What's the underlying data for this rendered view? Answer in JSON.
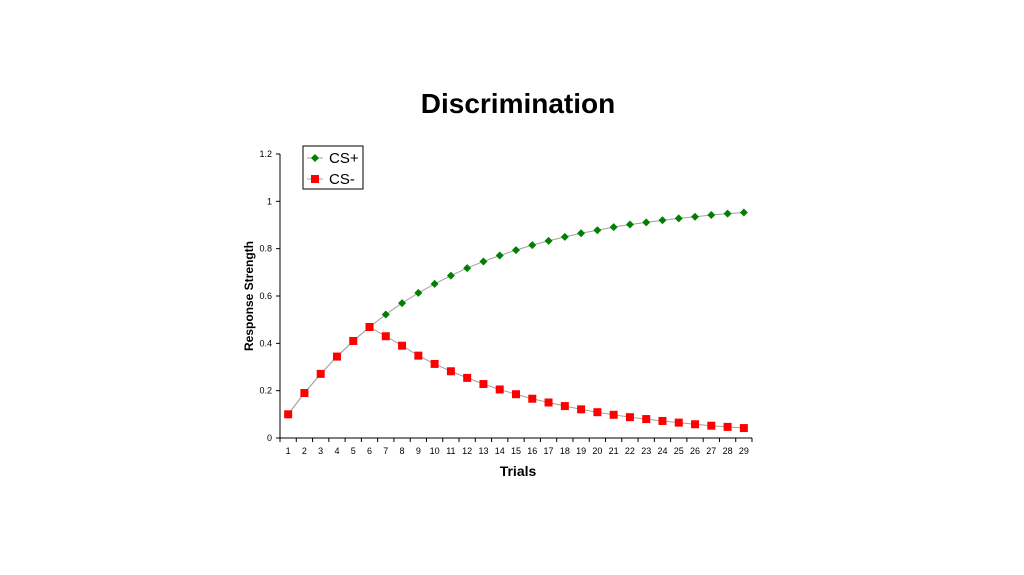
{
  "chart_data": {
    "type": "line",
    "title": "Discrimination",
    "xlabel": "Trials",
    "ylabel": "Response Strength",
    "categories": [
      "1",
      "2",
      "3",
      "4",
      "5",
      "6",
      "7",
      "8",
      "9",
      "10",
      "11",
      "12",
      "13",
      "14",
      "15",
      "16",
      "17",
      "18",
      "19",
      "20",
      "21",
      "22",
      "23",
      "24",
      "25",
      "26",
      "27",
      "28",
      "29"
    ],
    "yticks": [
      "0",
      "0.2",
      "0.4",
      "0.6",
      "0.8",
      "1",
      "1.2"
    ],
    "ylim": [
      0,
      1.2
    ],
    "grid": false,
    "legend_position": "top-left",
    "series": [
      {
        "name": "CS+",
        "color": "#008000",
        "marker": "diamond",
        "values": [
          0.1,
          0.19,
          0.271,
          0.344,
          0.41,
          0.469,
          0.522,
          0.57,
          0.613,
          0.651,
          0.686,
          0.718,
          0.746,
          0.771,
          0.794,
          0.815,
          0.833,
          0.85,
          0.865,
          0.878,
          0.891,
          0.902,
          0.911,
          0.92,
          0.928,
          0.935,
          0.942,
          0.948,
          0.953
        ]
      },
      {
        "name": "CS-",
        "color": "#ff0000",
        "marker": "square",
        "values": [
          0.1,
          0.19,
          0.271,
          0.344,
          0.41,
          0.469,
          0.43,
          0.39,
          0.348,
          0.313,
          0.282,
          0.254,
          0.228,
          0.205,
          0.185,
          0.166,
          0.15,
          0.135,
          0.121,
          0.109,
          0.098,
          0.088,
          0.08,
          0.072,
          0.065,
          0.058,
          0.052,
          0.047,
          0.042
        ]
      }
    ]
  }
}
